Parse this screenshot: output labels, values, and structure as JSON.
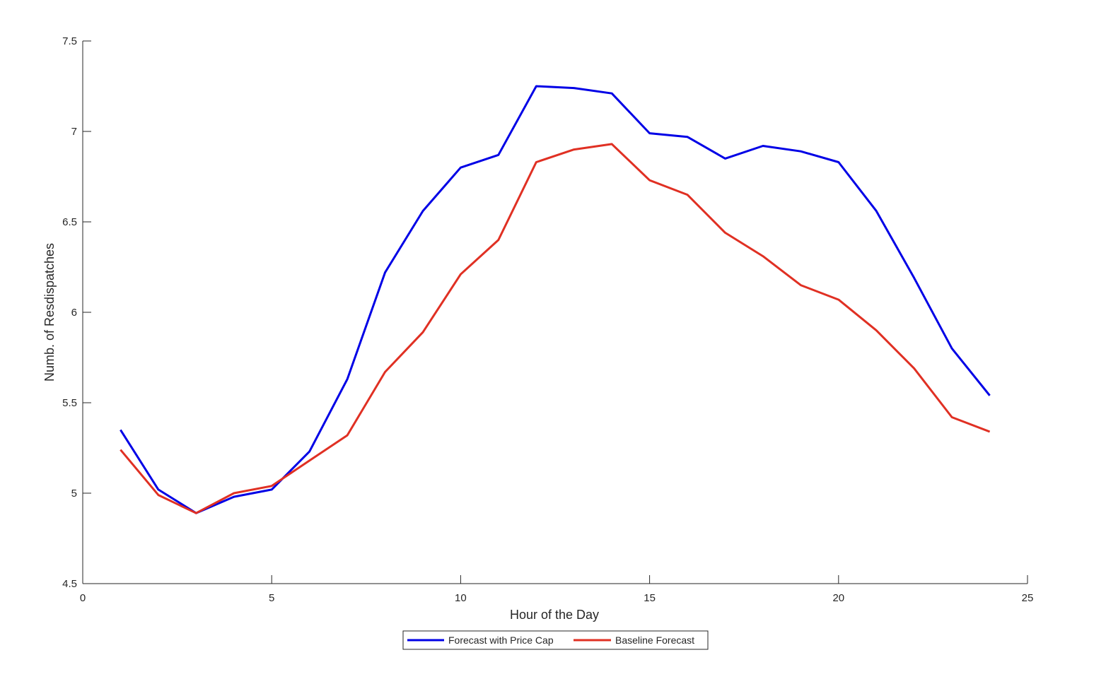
{
  "chart_data": {
    "type": "line",
    "title": "",
    "xlabel": "Hour of the Day",
    "ylabel": "Numb. of Resdispatches",
    "xlim": [
      0,
      25
    ],
    "ylim": [
      4.5,
      7.5
    ],
    "xticks": [
      0,
      5,
      10,
      15,
      20,
      25
    ],
    "yticks": [
      4.5,
      5,
      5.5,
      6,
      6.5,
      7,
      7.5
    ],
    "xtick_labels": [
      "0",
      "5",
      "10",
      "15",
      "20",
      "25"
    ],
    "ytick_labels": [
      "4.5",
      "5",
      "5.5",
      "6",
      "6.5",
      "7",
      "7.5"
    ],
    "grid": false,
    "legend_position": "bottom-center",
    "x": [
      1,
      2,
      3,
      4,
      5,
      6,
      7,
      8,
      9,
      10,
      11,
      12,
      13,
      14,
      15,
      16,
      17,
      18,
      19,
      20,
      21,
      22,
      23,
      24
    ],
    "series": [
      {
        "name": "Forecast with Price Cap",
        "color": "#0000e6",
        "values": [
          5.35,
          5.02,
          4.89,
          4.98,
          5.02,
          5.23,
          5.63,
          6.22,
          6.56,
          6.8,
          6.87,
          7.25,
          7.24,
          7.21,
          6.99,
          6.97,
          6.85,
          6.92,
          6.89,
          6.83,
          6.56,
          6.19,
          5.8,
          5.54
        ]
      },
      {
        "name": "Baseline Forecast",
        "color": "#e03023",
        "values": [
          5.24,
          4.99,
          4.89,
          5.0,
          5.04,
          5.18,
          5.32,
          5.67,
          5.89,
          6.21,
          6.4,
          6.83,
          6.9,
          6.93,
          6.73,
          6.65,
          6.44,
          6.31,
          6.15,
          6.07,
          5.9,
          5.69,
          5.42,
          5.34
        ]
      }
    ]
  }
}
